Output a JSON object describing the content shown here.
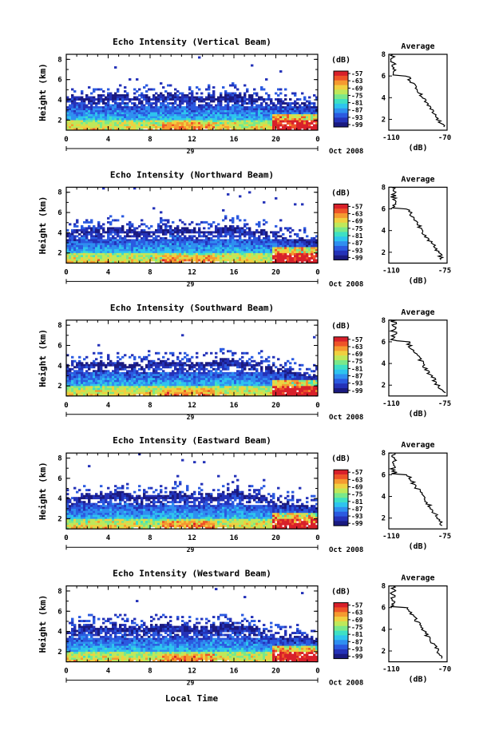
{
  "figure": {
    "x_axis_label": "Local Time",
    "date_label": "Oct 2008",
    "day_label": "29",
    "height_label": "Height (km)",
    "unit_label": "(dB)",
    "avg_title": "Average",
    "avg_xlabel": "(dB)"
  },
  "chart_data": [
    {
      "type": "heatmap",
      "title": "Echo Intensity (Vertical Beam)",
      "x_ticks": [
        "0",
        "4",
        "8",
        "12",
        "16",
        "20",
        "0"
      ],
      "y_ticks": [
        "2",
        "4",
        "6",
        "8"
      ],
      "xlim": [
        0,
        24
      ],
      "ylim": [
        1,
        8.5
      ],
      "colorbar_ticks": [
        "-57",
        "-63",
        "-69",
        "-75",
        "-81",
        "-87",
        "-93",
        "-99"
      ],
      "avg_profile": {
        "type": "line",
        "xlim": [
          -110,
          -70
        ],
        "x_ticks": [
          "-110",
          "-70"
        ],
        "y_ticks": [
          "2",
          "4",
          "6",
          "8"
        ],
        "ylim": [
          1,
          8
        ]
      },
      "echo_top_km": [
        4.2,
        4.4,
        4.5,
        4.3,
        4.5,
        4.6,
        4.3,
        4.2,
        4.4,
        4.6,
        4.5,
        4.4,
        4.3,
        4.3,
        4.4,
        4.5,
        4.6,
        4.5,
        4.3,
        4.2,
        4.1,
        3.9,
        3.8,
        3.6,
        3.5
      ]
    },
    {
      "type": "heatmap",
      "title": "Echo Intensity (Northward Beam)",
      "x_ticks": [
        "0",
        "4",
        "8",
        "12",
        "16",
        "20",
        "0"
      ],
      "y_ticks": [
        "2",
        "4",
        "6",
        "8"
      ],
      "xlim": [
        0,
        24
      ],
      "ylim": [
        1,
        8.5
      ],
      "colorbar_ticks": [
        "-57",
        "-63",
        "-69",
        "-75",
        "-81",
        "-87",
        "-93",
        "-99"
      ],
      "avg_profile": {
        "type": "line",
        "xlim": [
          -110,
          -75
        ],
        "x_ticks": [
          "-110",
          "-75"
        ],
        "y_ticks": [
          "2",
          "4",
          "6",
          "8"
        ],
        "ylim": [
          1,
          8
        ]
      },
      "echo_top_km": [
        4.0,
        4.2,
        4.3,
        4.2,
        4.4,
        4.5,
        4.3,
        4.2,
        4.3,
        4.5,
        4.6,
        4.4,
        4.3,
        4.3,
        4.4,
        4.6,
        4.7,
        4.5,
        4.3,
        4.1,
        3.9,
        3.7,
        3.5,
        3.3,
        3.2
      ]
    },
    {
      "type": "heatmap",
      "title": "Echo Intensity (Southward Beam)",
      "x_ticks": [
        "0",
        "4",
        "8",
        "12",
        "16",
        "20",
        "0"
      ],
      "y_ticks": [
        "2",
        "4",
        "6",
        "8"
      ],
      "xlim": [
        0,
        24
      ],
      "ylim": [
        1,
        8.5
      ],
      "colorbar_ticks": [
        "-57",
        "-63",
        "-69",
        "-75",
        "-81",
        "-87",
        "-93",
        "-99"
      ],
      "avg_profile": {
        "type": "line",
        "xlim": [
          -110,
          -75
        ],
        "x_ticks": [
          "-110",
          "-75"
        ],
        "y_ticks": [
          "2",
          "4",
          "6",
          "8"
        ],
        "ylim": [
          1,
          8
        ]
      },
      "echo_top_km": [
        4.0,
        4.1,
        4.3,
        4.2,
        4.3,
        4.4,
        4.2,
        4.1,
        4.3,
        4.6,
        4.5,
        4.3,
        4.2,
        4.2,
        4.3,
        4.7,
        4.6,
        4.4,
        4.2,
        4.0,
        3.8,
        3.6,
        3.4,
        3.2,
        3.1
      ]
    },
    {
      "type": "heatmap",
      "title": "Echo Intensity (Eastward Beam)",
      "x_ticks": [
        "0",
        "4",
        "8",
        "12",
        "16",
        "20",
        "0"
      ],
      "y_ticks": [
        "2",
        "4",
        "6",
        "8"
      ],
      "xlim": [
        0,
        24
      ],
      "ylim": [
        1,
        8.5
      ],
      "colorbar_ticks": [
        "-57",
        "-63",
        "-69",
        "-75",
        "-81",
        "-87",
        "-93",
        "-99"
      ],
      "avg_profile": {
        "type": "line",
        "xlim": [
          -110,
          -75
        ],
        "x_ticks": [
          "-110",
          "-75"
        ],
        "y_ticks": [
          "2",
          "4",
          "6",
          "8"
        ],
        "ylim": [
          1,
          8
        ]
      },
      "echo_top_km": [
        4.0,
        4.2,
        4.4,
        4.3,
        4.5,
        4.6,
        4.4,
        4.2,
        4.3,
        4.5,
        4.6,
        4.5,
        4.3,
        4.3,
        4.4,
        4.6,
        4.7,
        4.5,
        4.3,
        4.1,
        3.9,
        3.7,
        3.5,
        3.3,
        3.2
      ]
    },
    {
      "type": "heatmap",
      "title": "Echo Intensity (Westward Beam)",
      "x_ticks": [
        "0",
        "4",
        "8",
        "12",
        "16",
        "20",
        "0"
      ],
      "y_ticks": [
        "2",
        "4",
        "6",
        "8"
      ],
      "xlim": [
        0,
        24
      ],
      "ylim": [
        1,
        8.5
      ],
      "colorbar_ticks": [
        "-57",
        "-63",
        "-69",
        "-75",
        "-81",
        "-87",
        "-93",
        "-99"
      ],
      "avg_profile": {
        "type": "line",
        "xlim": [
          -110,
          -70
        ],
        "x_ticks": [
          "-110",
          "-70"
        ],
        "y_ticks": [
          "2",
          "4",
          "6",
          "8"
        ],
        "ylim": [
          1,
          8
        ]
      },
      "echo_top_km": [
        4.2,
        4.4,
        4.6,
        4.4,
        4.5,
        4.6,
        4.4,
        4.3,
        4.5,
        4.7,
        4.6,
        4.5,
        4.4,
        4.4,
        4.6,
        4.9,
        4.8,
        4.5,
        4.3,
        4.1,
        3.9,
        3.7,
        3.5,
        3.4,
        3.3
      ]
    }
  ],
  "colormap": [
    "#1a1a80",
    "#2432b8",
    "#2b5ae0",
    "#2f8ff0",
    "#2ec4ee",
    "#3ee0c4",
    "#7ae88a",
    "#bfe85a",
    "#f0d040",
    "#f59a30",
    "#ee5428",
    "#d8202a"
  ]
}
